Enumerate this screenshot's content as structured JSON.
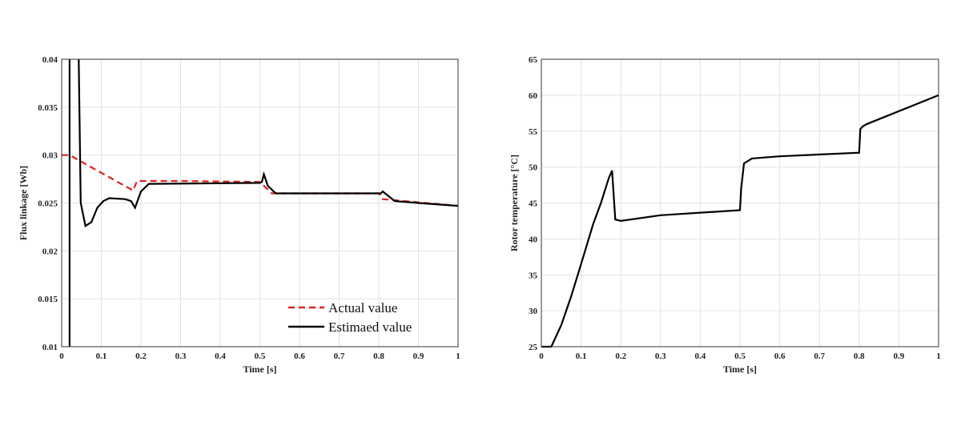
{
  "chart_data": [
    {
      "type": "line",
      "xlabel": "Time [s]",
      "ylabel": "Flux linkage [Wb]",
      "xlim": [
        0,
        1
      ],
      "ylim": [
        0.01,
        0.04
      ],
      "xticks": [
        0,
        0.1,
        0.2,
        0.3,
        0.4,
        0.5,
        0.6,
        0.7,
        0.8,
        0.9,
        1
      ],
      "xtick_labels": [
        "0",
        "0.1",
        "0.2",
        "0.3",
        "0.4",
        "0.5",
        "0.6",
        "0.7",
        "0.8",
        "0.9",
        "1"
      ],
      "yticks": [
        0.01,
        0.015,
        0.02,
        0.025,
        0.03,
        0.035,
        0.04
      ],
      "ytick_labels": [
        "0.01",
        "0.015",
        "0.02",
        "0.025",
        "0.03",
        "0.035",
        "0.04"
      ],
      "grid": true,
      "legend_position": "bottom-right",
      "series": [
        {
          "name": "Actual value",
          "color": "#e02020",
          "style": "dashed",
          "x": [
            0,
            0.02,
            0.18,
            0.19,
            0.3,
            0.5,
            0.53,
            0.8,
            0.81,
            1
          ],
          "y": [
            0.03,
            0.03,
            0.0263,
            0.0273,
            0.0273,
            0.0272,
            0.026,
            0.026,
            0.0254,
            0.0247
          ]
        },
        {
          "name": "Estimaed value",
          "color": "#000000",
          "style": "solid",
          "x": [
            0.02,
            0.02,
            0.02,
            0.043,
            0.048,
            0.06,
            0.075,
            0.09,
            0.105,
            0.12,
            0.16,
            0.175,
            0.185,
            0.2,
            0.22,
            0.5,
            0.505,
            0.51,
            0.52,
            0.54,
            0.805,
            0.81,
            0.84,
            0.9,
            1
          ],
          "y": [
            0.01,
            0.04,
            null,
            0.04,
            0.025,
            0.0226,
            0.023,
            0.0245,
            0.0252,
            0.0255,
            0.0254,
            0.0252,
            0.0245,
            0.0262,
            0.027,
            0.0271,
            0.0272,
            0.028,
            0.0268,
            0.026,
            0.026,
            0.0262,
            0.0252,
            0.025,
            0.0247
          ]
        }
      ]
    },
    {
      "type": "line",
      "xlabel": "Time [s]",
      "ylabel": "Rotor temperature [°C]",
      "xlim": [
        0,
        1
      ],
      "ylim": [
        25,
        65
      ],
      "xticks": [
        0,
        0.1,
        0.2,
        0.3,
        0.4,
        0.5,
        0.6,
        0.7,
        0.8,
        0.9,
        1
      ],
      "xtick_labels": [
        "0",
        "0.1",
        "0.2",
        "0.3",
        "0.4",
        "0.5",
        "0.6",
        "0.7",
        "0.8",
        "0.9",
        "1"
      ],
      "yticks": [
        25,
        30,
        35,
        40,
        45,
        50,
        55,
        60,
        65
      ],
      "ytick_labels": [
        "25",
        "30",
        "35",
        "40",
        "45",
        "50",
        "55",
        "60",
        "65"
      ],
      "grid": true,
      "series": [
        {
          "color": "#000000",
          "style": "solid",
          "x": [
            0,
            0.025,
            0.05,
            0.075,
            0.1,
            0.13,
            0.15,
            0.17,
            0.178,
            0.186,
            0.2,
            0.3,
            0.5,
            0.503,
            0.51,
            0.53,
            0.6,
            0.8,
            0.803,
            0.81,
            0.82,
            1
          ],
          "y": [
            25,
            25,
            28,
            32,
            36.5,
            42,
            45,
            48.5,
            49.5,
            42.7,
            42.5,
            43.3,
            44,
            47,
            50.5,
            51.2,
            51.5,
            52,
            55.3,
            55.7,
            56,
            60
          ]
        }
      ]
    }
  ]
}
